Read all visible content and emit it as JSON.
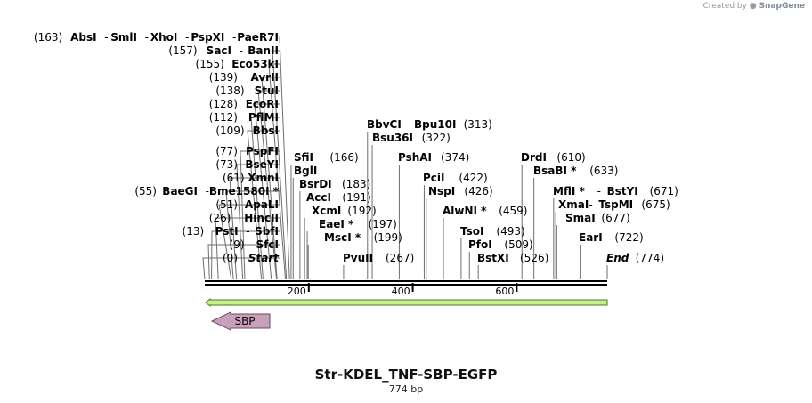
{
  "credit": {
    "prefix": "Created by",
    "brand": "SnapGene"
  },
  "sequence": {
    "name": "Str-KDEL_TNF-SBP-EGFP",
    "length_label": "774 bp",
    "length_bp": 774
  },
  "ruler": {
    "ticks": [
      {
        "pos": 200,
        "label": "200"
      },
      {
        "pos": 400,
        "label": "400"
      },
      {
        "pos": 600,
        "label": "600"
      }
    ]
  },
  "feature": {
    "label": "SBP",
    "fill": "#c9a0bc",
    "stroke": "#6b4a60"
  },
  "primer_bar": {
    "fill": "#c6f08a",
    "stroke": "#4a7a2a"
  },
  "sites": [
    {
      "pos": 163,
      "pos_label": "(163)",
      "names": [
        "AbsI",
        "SmlI",
        "XhoI",
        "PspXI",
        "PaeR7I"
      ],
      "side": "left"
    },
    {
      "pos": 157,
      "pos_label": "(157)",
      "names": [
        "SacI",
        "BanII"
      ],
      "side": "left"
    },
    {
      "pos": 155,
      "pos_label": "(155)",
      "names": [
        "Eco53kI"
      ],
      "side": "left"
    },
    {
      "pos": 139,
      "pos_label": "(139)",
      "names": [
        "AvrII"
      ],
      "side": "left"
    },
    {
      "pos": 138,
      "pos_label": "(138)",
      "names": [
        "StuI"
      ],
      "side": "left"
    },
    {
      "pos": 128,
      "pos_label": "(128)",
      "names": [
        "EcoRI"
      ],
      "side": "left"
    },
    {
      "pos": 112,
      "pos_label": "(112)",
      "names": [
        "PflMI"
      ],
      "side": "left"
    },
    {
      "pos": 109,
      "pos_label": "(109)",
      "names": [
        "BbsI"
      ],
      "side": "left"
    },
    {
      "pos": 77,
      "pos_label": "(77)",
      "names": [
        "PspFI"
      ],
      "side": "left"
    },
    {
      "pos": 73,
      "pos_label": "(73)",
      "names": [
        "BseYI"
      ],
      "side": "left"
    },
    {
      "pos": 61,
      "pos_label": "(61)",
      "names": [
        "XmnI"
      ],
      "side": "left"
    },
    {
      "pos": 55,
      "pos_label": "(55)",
      "names": [
        "BaeGI",
        "Bme1580I *"
      ],
      "side": "left"
    },
    {
      "pos": 51,
      "pos_label": "(51)",
      "names": [
        "ApaLI"
      ],
      "side": "left"
    },
    {
      "pos": 26,
      "pos_label": "(26)",
      "names": [
        "HincII"
      ],
      "side": "left"
    },
    {
      "pos": 13,
      "pos_label": "(13)",
      "names": [
        "PstI",
        "SbfI"
      ],
      "side": "left"
    },
    {
      "pos": 9,
      "pos_label": "(9)",
      "names": [
        "SfcI"
      ],
      "side": "left"
    },
    {
      "pos": 0,
      "pos_label": "(0)",
      "names": [
        "Start"
      ],
      "side": "left",
      "italic": true
    },
    {
      "pos": 166,
      "pos_label": "(166)",
      "names": [
        "SfiI"
      ],
      "side": "right"
    },
    {
      "pos": 170,
      "pos_label": "",
      "names": [
        "BglI"
      ],
      "side": "right"
    },
    {
      "pos": 183,
      "pos_label": "(183)",
      "names": [
        "BsrDI"
      ],
      "side": "right"
    },
    {
      "pos": 191,
      "pos_label": "(191)",
      "names": [
        "AccI"
      ],
      "side": "right"
    },
    {
      "pos": 192,
      "pos_label": "(192)",
      "names": [
        "XcmI"
      ],
      "side": "right"
    },
    {
      "pos": 197,
      "pos_label": "(197)",
      "names": [
        "EaeI *"
      ],
      "side": "right"
    },
    {
      "pos": 199,
      "pos_label": "(199)",
      "names": [
        "MscI *"
      ],
      "side": "right"
    },
    {
      "pos": 267,
      "pos_label": "(267)",
      "names": [
        "PvuII"
      ],
      "side": "right"
    },
    {
      "pos": 313,
      "pos_label": "(313)",
      "names": [
        "BbvCI",
        "Bpu10I"
      ],
      "side": "right"
    },
    {
      "pos": 322,
      "pos_label": "(322)",
      "names": [
        "Bsu36I"
      ],
      "side": "right"
    },
    {
      "pos": 374,
      "pos_label": "(374)",
      "names": [
        "PshAI"
      ],
      "side": "right"
    },
    {
      "pos": 422,
      "pos_label": "(422)",
      "names": [
        "PciI"
      ],
      "side": "right"
    },
    {
      "pos": 426,
      "pos_label": "(426)",
      "names": [
        "NspI"
      ],
      "side": "right"
    },
    {
      "pos": 459,
      "pos_label": "(459)",
      "names": [
        "AlwNI *"
      ],
      "side": "right"
    },
    {
      "pos": 493,
      "pos_label": "(493)",
      "names": [
        "TsoI"
      ],
      "side": "right"
    },
    {
      "pos": 509,
      "pos_label": "(509)",
      "names": [
        "PfoI"
      ],
      "side": "right"
    },
    {
      "pos": 526,
      "pos_label": "(526)",
      "names": [
        "BstXI"
      ],
      "side": "right"
    },
    {
      "pos": 610,
      "pos_label": "(610)",
      "names": [
        "DrdI"
      ],
      "side": "right"
    },
    {
      "pos": 633,
      "pos_label": "(633)",
      "names": [
        "BsaBI *"
      ],
      "side": "right"
    },
    {
      "pos": 671,
      "pos_label": "(671)",
      "names": [
        "MflI *",
        "BstYI"
      ],
      "side": "right"
    },
    {
      "pos": 675,
      "pos_label": "(675)",
      "names": [
        "XmaI",
        "TspMI"
      ],
      "side": "right"
    },
    {
      "pos": 677,
      "pos_label": "(677)",
      "names": [
        "SmaI"
      ],
      "side": "right"
    },
    {
      "pos": 722,
      "pos_label": "(722)",
      "names": [
        "EarI"
      ],
      "side": "right"
    },
    {
      "pos": 774,
      "pos_label": "(774)",
      "names": [
        "End"
      ],
      "side": "right",
      "italic": true
    }
  ]
}
